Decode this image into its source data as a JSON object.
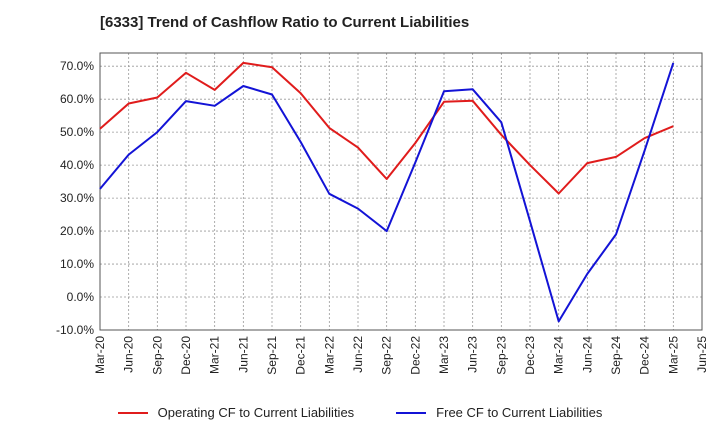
{
  "chart_data": {
    "type": "line",
    "title": "[6333]  Trend of Cashflow Ratio to Current Liabilities",
    "x_labels": [
      "Mar-20",
      "Jun-20",
      "Sep-20",
      "Dec-20",
      "Mar-21",
      "Jun-21",
      "Sep-21",
      "Dec-21",
      "Mar-22",
      "Jun-22",
      "Sep-22",
      "Dec-22",
      "Mar-23",
      "Jun-23",
      "Sep-23",
      "Dec-23",
      "Mar-24",
      "Jun-24",
      "Sep-24",
      "Dec-24",
      "Mar-25",
      "Jun-25"
    ],
    "y_ticks": [
      "-10.0%",
      "0.0%",
      "10.0%",
      "20.0%",
      "30.0%",
      "40.0%",
      "50.0%",
      "60.0%",
      "70.0%"
    ],
    "ylim": [
      -10,
      74
    ],
    "grid": true,
    "legend_position": "bottom",
    "series": [
      {
        "name": "Operating CF to Current Liabilities",
        "color": "#e01c1c",
        "values": [
          51.0,
          58.7,
          60.5,
          68.0,
          62.8,
          71.0,
          69.7,
          61.8,
          51.3,
          45.3,
          35.8,
          46.7,
          59.2,
          59.5,
          49.2,
          40.0,
          31.4,
          40.6,
          42.5,
          48.2,
          51.8,
          null
        ]
      },
      {
        "name": "Free CF to Current Liabilities",
        "color": "#1313d6",
        "values": [
          32.8,
          43.2,
          50.0,
          59.4,
          58.0,
          64.0,
          61.4,
          47.0,
          31.3,
          26.8,
          20.0,
          40.8,
          62.4,
          63.0,
          53.0,
          23.0,
          -7.4,
          7.0,
          19.0,
          44.5,
          71.0,
          null
        ]
      }
    ]
  }
}
